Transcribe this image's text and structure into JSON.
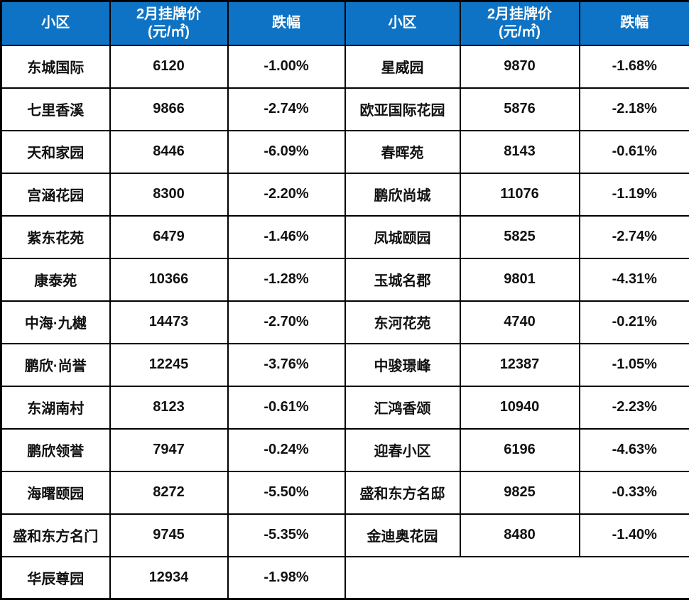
{
  "table": {
    "header": {
      "community": "小区",
      "price_line1": "2月挂牌价",
      "price_line2": "(元/㎡)",
      "drop": "跌幅"
    },
    "left_rows": [
      {
        "name": "东城国际",
        "price": "6120",
        "drop": "-1.00%"
      },
      {
        "name": "七里香溪",
        "price": "9866",
        "drop": "-2.74%"
      },
      {
        "name": "天和家园",
        "price": "8446",
        "drop": "-6.09%"
      },
      {
        "name": "宫涵花园",
        "price": "8300",
        "drop": "-2.20%"
      },
      {
        "name": "紫东花苑",
        "price": "6479",
        "drop": "-1.46%"
      },
      {
        "name": "康泰苑",
        "price": "10366",
        "drop": "-1.28%"
      },
      {
        "name": "中海·九樾",
        "price": "14473",
        "drop": "-2.70%"
      },
      {
        "name": "鹏欣·尚誉",
        "price": "12245",
        "drop": "-3.76%"
      },
      {
        "name": "东湖南村",
        "price": "8123",
        "drop": "-0.61%"
      },
      {
        "name": "鹏欣领誉",
        "price": "7947",
        "drop": "-0.24%"
      },
      {
        "name": "海曙颐园",
        "price": "8272",
        "drop": "-5.50%"
      },
      {
        "name": "盛和东方名门",
        "price": "9745",
        "drop": "-5.35%"
      },
      {
        "name": "华辰尊园",
        "price": "12934",
        "drop": "-1.98%"
      }
    ],
    "right_rows": [
      {
        "name": "星威园",
        "price": "9870",
        "drop": "-1.68%"
      },
      {
        "name": "欧亚国际花园",
        "price": "5876",
        "drop": "-2.18%"
      },
      {
        "name": "春晖苑",
        "price": "8143",
        "drop": "-0.61%"
      },
      {
        "name": "鹏欣尚城",
        "price": "11076",
        "drop": "-1.19%"
      },
      {
        "name": "凤城颐园",
        "price": "5825",
        "drop": "-2.74%"
      },
      {
        "name": "玉城名郡",
        "price": "9801",
        "drop": "-4.31%"
      },
      {
        "name": "东河花苑",
        "price": "4740",
        "drop": "-0.21%"
      },
      {
        "name": "中骏璟峰",
        "price": "12387",
        "drop": "-1.05%"
      },
      {
        "name": "汇鸿香颂",
        "price": "10940",
        "drop": "-2.23%"
      },
      {
        "name": "迎春小区",
        "price": "6196",
        "drop": "-4.63%"
      },
      {
        "name": "盛和东方名邸",
        "price": "9825",
        "drop": "-0.33%"
      },
      {
        "name": "金迪奥花园",
        "price": "8480",
        "drop": "-1.40%"
      }
    ]
  },
  "colors": {
    "header_bg": "#0e73c4",
    "header_text": "#ffffff",
    "body_text": "#111111",
    "border": "#000000"
  },
  "chart_data": {
    "type": "table",
    "columns": [
      "小区",
      "2月挂牌价(元/㎡)",
      "跌幅",
      "小区",
      "2月挂牌价(元/㎡)",
      "跌幅"
    ],
    "rows": [
      [
        "东城国际",
        6120,
        "-1.00%",
        "星威园",
        9870,
        "-1.68%"
      ],
      [
        "七里香溪",
        9866,
        "-2.74%",
        "欧亚国际花园",
        5876,
        "-2.18%"
      ],
      [
        "天和家园",
        8446,
        "-6.09%",
        "春晖苑",
        8143,
        "-0.61%"
      ],
      [
        "宫涵花园",
        8300,
        "-2.20%",
        "鹏欣尚城",
        11076,
        "-1.19%"
      ],
      [
        "紫东花苑",
        6479,
        "-1.46%",
        "凤城颐园",
        5825,
        "-2.74%"
      ],
      [
        "康泰苑",
        10366,
        "-1.28%",
        "玉城名郡",
        9801,
        "-4.31%"
      ],
      [
        "中海·九樾",
        14473,
        "-2.70%",
        "东河花苑",
        4740,
        "-0.21%"
      ],
      [
        "鹏欣·尚誉",
        12245,
        "-3.76%",
        "中骏璟峰",
        12387,
        "-1.05%"
      ],
      [
        "东湖南村",
        8123,
        "-0.61%",
        "汇鸿香颂",
        10940,
        "-2.23%"
      ],
      [
        "鹏欣领誉",
        7947,
        "-0.24%",
        "迎春小区",
        6196,
        "-4.63%"
      ],
      [
        "海曙颐园",
        8272,
        "-5.50%",
        "盛和东方名邸",
        9825,
        "-0.33%"
      ],
      [
        "盛和东方名门",
        9745,
        "-5.35%",
        "金迪奥花园",
        8480,
        "-1.40%"
      ],
      [
        "华辰尊园",
        12934,
        "-1.98%",
        "",
        "",
        ""
      ]
    ]
  }
}
